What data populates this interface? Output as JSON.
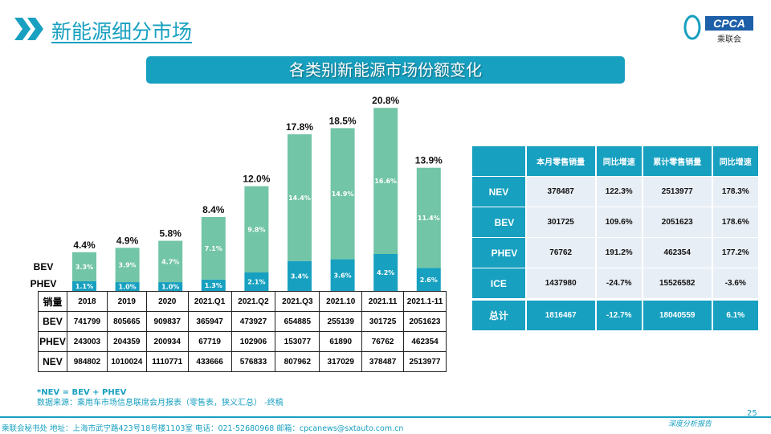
{
  "header": {
    "title": "新能源细分市场",
    "logo_text": "CPCA",
    "logo_sub": "乘联会",
    "banner": "各类别新能源市场份额变化"
  },
  "chart_data": {
    "type": "bar",
    "stacked": true,
    "categories": [
      "2018",
      "2019",
      "2020",
      "2021.Q1",
      "2021.Q2",
      "2021.Q3",
      "2021.10",
      "2021.11",
      "2021.1-11"
    ],
    "series": [
      {
        "name": "PHEV",
        "values": [
          1.1,
          1.0,
          1.0,
          1.3,
          2.1,
          3.4,
          3.6,
          4.2,
          2.6
        ],
        "labels": [
          "1.1%",
          "1.0%",
          "1.0%",
          "1.3%",
          "2.1%",
          "3.4%",
          "3.6%",
          "4.2%",
          "2.6%"
        ],
        "color": "#17a0c0"
      },
      {
        "name": "BEV",
        "values": [
          3.3,
          3.9,
          4.7,
          7.1,
          9.8,
          14.4,
          14.9,
          16.6,
          11.4
        ],
        "labels": [
          "3.3%",
          "3.9%",
          "4.7%",
          "7.1%",
          "9.8%",
          "14.4%",
          "14.9%",
          "16.6%",
          "11.4%"
        ],
        "color": "#72c5a6"
      }
    ],
    "totals": [
      4.4,
      4.9,
      5.8,
      8.4,
      12.0,
      17.8,
      18.5,
      20.8,
      13.9
    ],
    "total_labels": [
      "4.4%",
      "4.9%",
      "5.8%",
      "8.4%",
      "12.0%",
      "17.8%",
      "18.5%",
      "20.8%",
      "13.9%"
    ],
    "unit": "%",
    "grid": false,
    "legend": "left"
  },
  "data_table": {
    "header": [
      "销量",
      "2018",
      "2019",
      "2020",
      "2021.Q1",
      "2021.Q2",
      "2021.Q3",
      "2021.10",
      "2021.11",
      "2021.1-11"
    ],
    "rows": [
      [
        "BEV",
        "741799",
        "805665",
        "909837",
        "365947",
        "473927",
        "654885",
        "255139",
        "301725",
        "2051623"
      ],
      [
        "PHEV",
        "243003",
        "204359",
        "200934",
        "67719",
        "102906",
        "153077",
        "61890",
        "76762",
        "462354"
      ],
      [
        "NEV",
        "984802",
        "1010024",
        "1110771",
        "433666",
        "576833",
        "807962",
        "317029",
        "378487",
        "2513977"
      ]
    ]
  },
  "summary_table": {
    "header": [
      "",
      "本月零售销量",
      "同比增速",
      "累计零售销量",
      "同比增速"
    ],
    "rows": [
      [
        "NEV",
        "378487",
        "122.3%",
        "2513977",
        "178.3%"
      ],
      [
        "BEV",
        "301725",
        "109.6%",
        "2051623",
        "178.6%"
      ],
      [
        "PHEV",
        "76762",
        "191.2%",
        "462354",
        "177.2%"
      ],
      [
        "ICE",
        "1437980",
        "-24.7%",
        "15526582",
        "-3.6%"
      ]
    ],
    "total": [
      "总计",
      "1816467",
      "-12.7%",
      "18040559",
      "6.1%"
    ]
  },
  "notes": {
    "formula": "*NEV = BEV + PHEV",
    "source": "数据来源：乘用车市场信息联席会月报表（零售表，狭义汇总） -终稿"
  },
  "footer": {
    "address": "乘联会秘书处   地址：上海市武宁路423号18号楼1103室  电话：021-52680968   邮箱：cpcanews@sxtauto.com.cn",
    "report": "深度分析报告",
    "page": "25"
  },
  "colors": {
    "accent": "#17a0c0",
    "bev": "#72c5a6",
    "phev": "#17a0c0"
  }
}
